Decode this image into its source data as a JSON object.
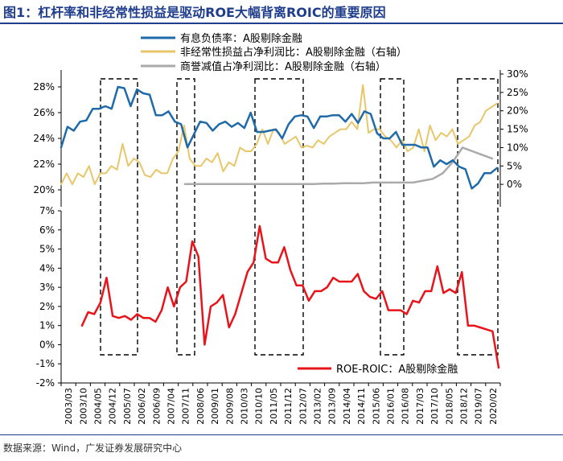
{
  "title": "图1：杠杆率和非经常性损益是驱动ROE大幅背离ROIC的重要原因",
  "source": "数据来源：Wind，广发证券发展研究中心",
  "colors": {
    "blue": "#1f6aa8",
    "gold": "#e7c76a",
    "gray": "#aaaaaa",
    "red": "#e8141c",
    "title": "#1f3d8c"
  },
  "chart_data": [
    {
      "type": "line",
      "title": "",
      "x_tick_labels": [
        "2003/03",
        "2003/10",
        "2004/05",
        "2004/12",
        "2005/07",
        "2006/02",
        "2006/09",
        "2007/04",
        "2007/11",
        "2008/06",
        "2009/01",
        "2009/08",
        "2010/03",
        "2010/10",
        "2011/05",
        "2011/12",
        "2012/07",
        "2013/02",
        "2013/09",
        "2014/04",
        "2014/11",
        "2015/06",
        "2016/01",
        "2016/08",
        "2017/03",
        "2017/10",
        "2018/05",
        "2018/12",
        "2019/07",
        "2020/02"
      ],
      "ylim_left": [
        19,
        29
      ],
      "yticks_left": [
        "20%",
        "22%",
        "24%",
        "26%",
        "28%"
      ],
      "ylim_right": [
        -5,
        30
      ],
      "yticks_right": [
        "0%",
        "5%",
        "10%",
        "15%",
        "20%",
        "25%",
        "30%"
      ],
      "series": [
        {
          "name": "有息负债率：A股剔除金融",
          "axis": "left",
          "values": [
            23.3,
            24.9,
            24.6,
            25.3,
            25.4,
            26.3,
            26.3,
            26.5,
            26.3,
            28.0,
            27.9,
            26.5,
            27.8,
            27.5,
            27.4,
            25.8,
            25.8,
            26.1,
            25.3,
            25.1,
            23.3,
            24.3,
            25.3,
            25.2,
            24.6,
            25.1,
            25.3,
            24.9,
            25.2,
            24.8,
            26.0,
            24.5,
            24.5,
            24.6,
            24.7,
            24.0,
            25.1,
            25.7,
            25.8,
            25.7,
            24.8,
            25.7,
            25.7,
            25.8,
            25.8,
            25.3,
            25.9,
            25.2,
            26.1,
            25.9,
            24.4,
            24.0,
            24.0,
            24.5,
            23.5,
            23.5,
            23.5,
            23.3,
            23.3,
            21.8,
            22.3,
            22.0,
            22.3,
            21.8,
            21.6,
            20.1,
            20.5,
            21.3,
            21.3,
            21.7
          ]
        },
        {
          "name": "非经常性损益占净利润比：A股剔除金融（右轴）",
          "axis": "right",
          "values": [
            0,
            3,
            0,
            3,
            2,
            5,
            0,
            3,
            3,
            5,
            4,
            11,
            5,
            7,
            6,
            2.5,
            2,
            4,
            3,
            3,
            7,
            9,
            16,
            7,
            5,
            5,
            7,
            6,
            8.5,
            3.5,
            6,
            5,
            10,
            9,
            9,
            11,
            15,
            11,
            15,
            14,
            11,
            12,
            13,
            10,
            10.5,
            10,
            12,
            11,
            13,
            14,
            15,
            15,
            17,
            15,
            27,
            14,
            15,
            15,
            13,
            12,
            10,
            12,
            9,
            10,
            15,
            9,
            16,
            12,
            14,
            13,
            15,
            11,
            12,
            13,
            16,
            17,
            20,
            21,
            22
          ]
        },
        {
          "name": "商誉减值占净利润比：A股剔除金融（右轴）",
          "axis": "right",
          "values": [
            0.1,
            0.1,
            0.1,
            0.1,
            0.1,
            0.1,
            0.1,
            0.1,
            0.1,
            0.1,
            0.1,
            0.1,
            0.1,
            0.1,
            0.2,
            0.2,
            0.3,
            0.3,
            0.3,
            0.5,
            0.5,
            0.5,
            0.5,
            0.5,
            1,
            1.5,
            3,
            6,
            10,
            9,
            8,
            7
          ]
        }
      ]
    },
    {
      "type": "line",
      "title": "",
      "ylim": [
        -2,
        7
      ],
      "yticks": [
        "-2%",
        "-1%",
        "0%",
        "1%",
        "2%",
        "3%",
        "4%",
        "5%",
        "6%",
        "7%"
      ],
      "series": [
        {
          "name": "ROE-ROIC：A股剔除金融",
          "axis": "left",
          "values": [
            1.0,
            1.7,
            1.6,
            2.2,
            3.5,
            1.5,
            1.4,
            1.5,
            1.3,
            1.6,
            1.4,
            1.4,
            1.2,
            1.8,
            3.0,
            2.0,
            3.0,
            3.3,
            5.4,
            4.6,
            0.0,
            2.0,
            2.2,
            2.6,
            0.9,
            1.6,
            2.7,
            3.8,
            4.3,
            6.2,
            4.5,
            4.3,
            4.3,
            5.1,
            3.9,
            3.1,
            3.1,
            2.3,
            2.8,
            2.8,
            3.0,
            3.5,
            3.3,
            3.3,
            3.3,
            3.7,
            2.8,
            2.5,
            2.4,
            2.8,
            1.8,
            1.8,
            1.8,
            1.6,
            2.3,
            2.2,
            2.8,
            2.8,
            4.1,
            2.7,
            2.9,
            2.7,
            3.8,
            1.0,
            1.0,
            0.9,
            0.8,
            0.7,
            -1.2
          ]
        }
      ]
    }
  ],
  "highlight_boxes": [
    "2004/10–2006/03",
    "2007/08–2007/12",
    "2010/04–2012/02",
    "2014/12–2016/06",
    "2018/06–2020/02"
  ]
}
